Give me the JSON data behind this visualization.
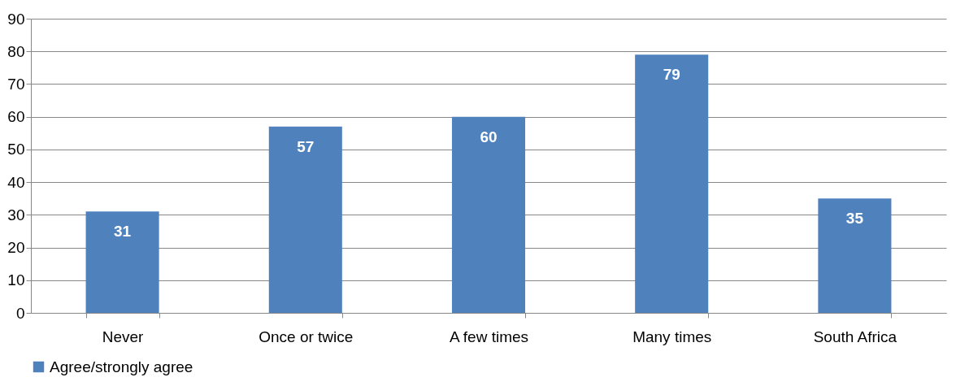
{
  "chart_data": {
    "type": "bar",
    "categories": [
      "Never",
      "Once or twice",
      "A few times",
      "Many times",
      "South Africa"
    ],
    "series": [
      {
        "name": "Agree/strongly agree",
        "color": "#4f81bd",
        "values": [
          31,
          57,
          60,
          79,
          35
        ]
      }
    ],
    "ylim": [
      0,
      90
    ],
    "yticks": [
      0,
      10,
      20,
      30,
      40,
      50,
      60,
      70,
      80,
      90
    ],
    "grid": "y",
    "legend": "bottom",
    "data_labels": true
  }
}
